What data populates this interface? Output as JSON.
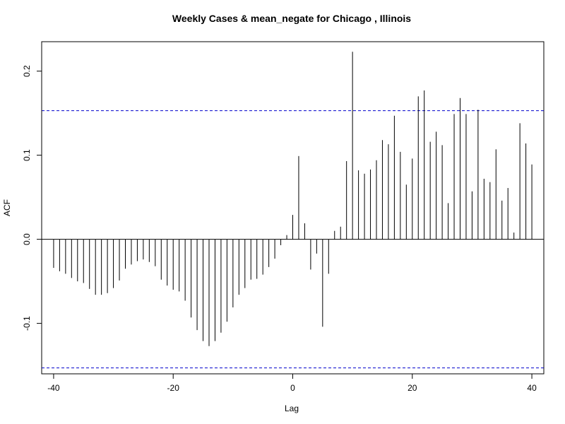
{
  "chart_data": {
    "type": "bar",
    "title": "Weekly Cases & mean_negate for Chicago , Illinois",
    "xlabel": "Lag",
    "ylabel": "ACF",
    "xlim": [
      -42,
      42
    ],
    "ylim": [
      -0.16,
      0.235
    ],
    "x_ticks": [
      -40,
      -20,
      0,
      20,
      40
    ],
    "x_tick_labels": [
      "-40",
      "-20",
      "0",
      "20",
      "40"
    ],
    "y_ticks": [
      -0.1,
      0.0,
      0.1,
      0.2
    ],
    "y_tick_labels": [
      "-0.1",
      "0.0",
      "0.1",
      "0.2"
    ],
    "confidence_bound": 0.153,
    "confidence_color": "#0000cc",
    "line_color": "#000000",
    "grid": false,
    "lags": [
      -40,
      -39,
      -38,
      -37,
      -36,
      -35,
      -34,
      -33,
      -32,
      -31,
      -30,
      -29,
      -28,
      -27,
      -26,
      -25,
      -24,
      -23,
      -22,
      -21,
      -20,
      -19,
      -18,
      -17,
      -16,
      -15,
      -14,
      -13,
      -12,
      -11,
      -10,
      -9,
      -8,
      -7,
      -6,
      -5,
      -4,
      -3,
      -2,
      -1,
      0,
      1,
      2,
      3,
      4,
      5,
      6,
      7,
      8,
      9,
      10,
      11,
      12,
      13,
      14,
      15,
      16,
      17,
      18,
      19,
      20,
      21,
      22,
      23,
      24,
      25,
      26,
      27,
      28,
      29,
      30,
      31,
      32,
      33,
      34,
      35,
      36,
      37,
      38,
      39,
      40
    ],
    "values": [
      -0.034,
      -0.038,
      -0.041,
      -0.046,
      -0.05,
      -0.052,
      -0.059,
      -0.066,
      -0.066,
      -0.064,
      -0.058,
      -0.049,
      -0.035,
      -0.03,
      -0.026,
      -0.024,
      -0.027,
      -0.032,
      -0.048,
      -0.055,
      -0.06,
      -0.062,
      -0.073,
      -0.093,
      -0.108,
      -0.121,
      -0.127,
      -0.121,
      -0.111,
      -0.098,
      -0.081,
      -0.066,
      -0.058,
      -0.048,
      -0.047,
      -0.042,
      -0.033,
      -0.023,
      -0.007,
      0.005,
      0.029,
      0.099,
      0.019,
      -0.036,
      -0.017,
      -0.104,
      -0.041,
      0.01,
      0.015,
      0.093,
      0.223,
      0.082,
      0.078,
      0.083,
      0.094,
      0.118,
      0.113,
      0.147,
      0.104,
      0.065,
      0.096,
      0.17,
      0.177,
      0.116,
      0.128,
      0.112,
      0.043,
      0.149,
      0.168,
      0.149,
      0.057,
      0.154,
      0.072,
      0.068,
      0.107,
      0.046,
      0.061,
      0.008,
      0.138,
      0.114,
      0.089
    ]
  }
}
